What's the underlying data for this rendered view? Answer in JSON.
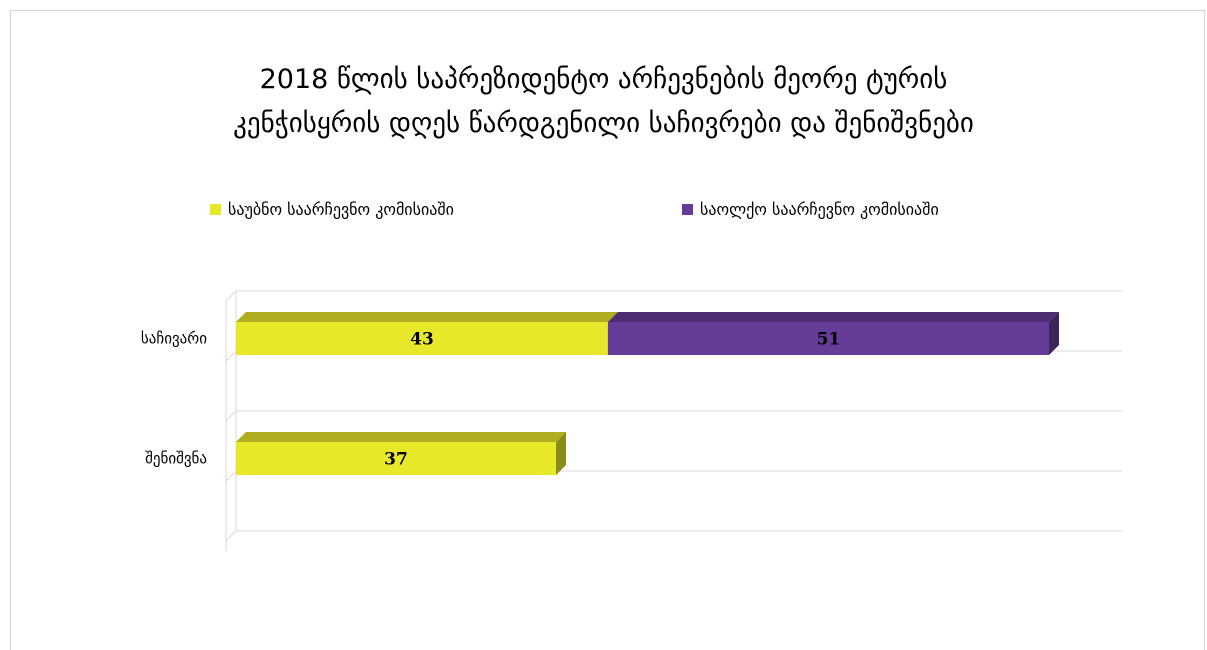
{
  "chart_data": {
    "type": "bar",
    "orientation": "horizontal",
    "stacked": true,
    "title_lines": [
      "2018 წლის საპრეზიდენტო არჩევნების მეორე ტურის",
      "კენჭისყრის დღეს წარდგენილი საჩივრები და შენიშვნები"
    ],
    "categories": [
      "საჩივარი",
      "შენიშვნა"
    ],
    "series": [
      {
        "name": "საუბნო საარჩევნო კომისიაში",
        "values": [
          43,
          37
        ],
        "color": "#e8e82a"
      },
      {
        "name": "საოლქო საარჩევნო კომისიაში",
        "values": [
          51,
          0
        ],
        "color": "#653c97"
      }
    ],
    "data_labels": [
      [
        "43",
        "51"
      ],
      [
        "37",
        ""
      ]
    ],
    "legend_position": "top",
    "grid": true,
    "axis_lines": true,
    "3d": true
  }
}
